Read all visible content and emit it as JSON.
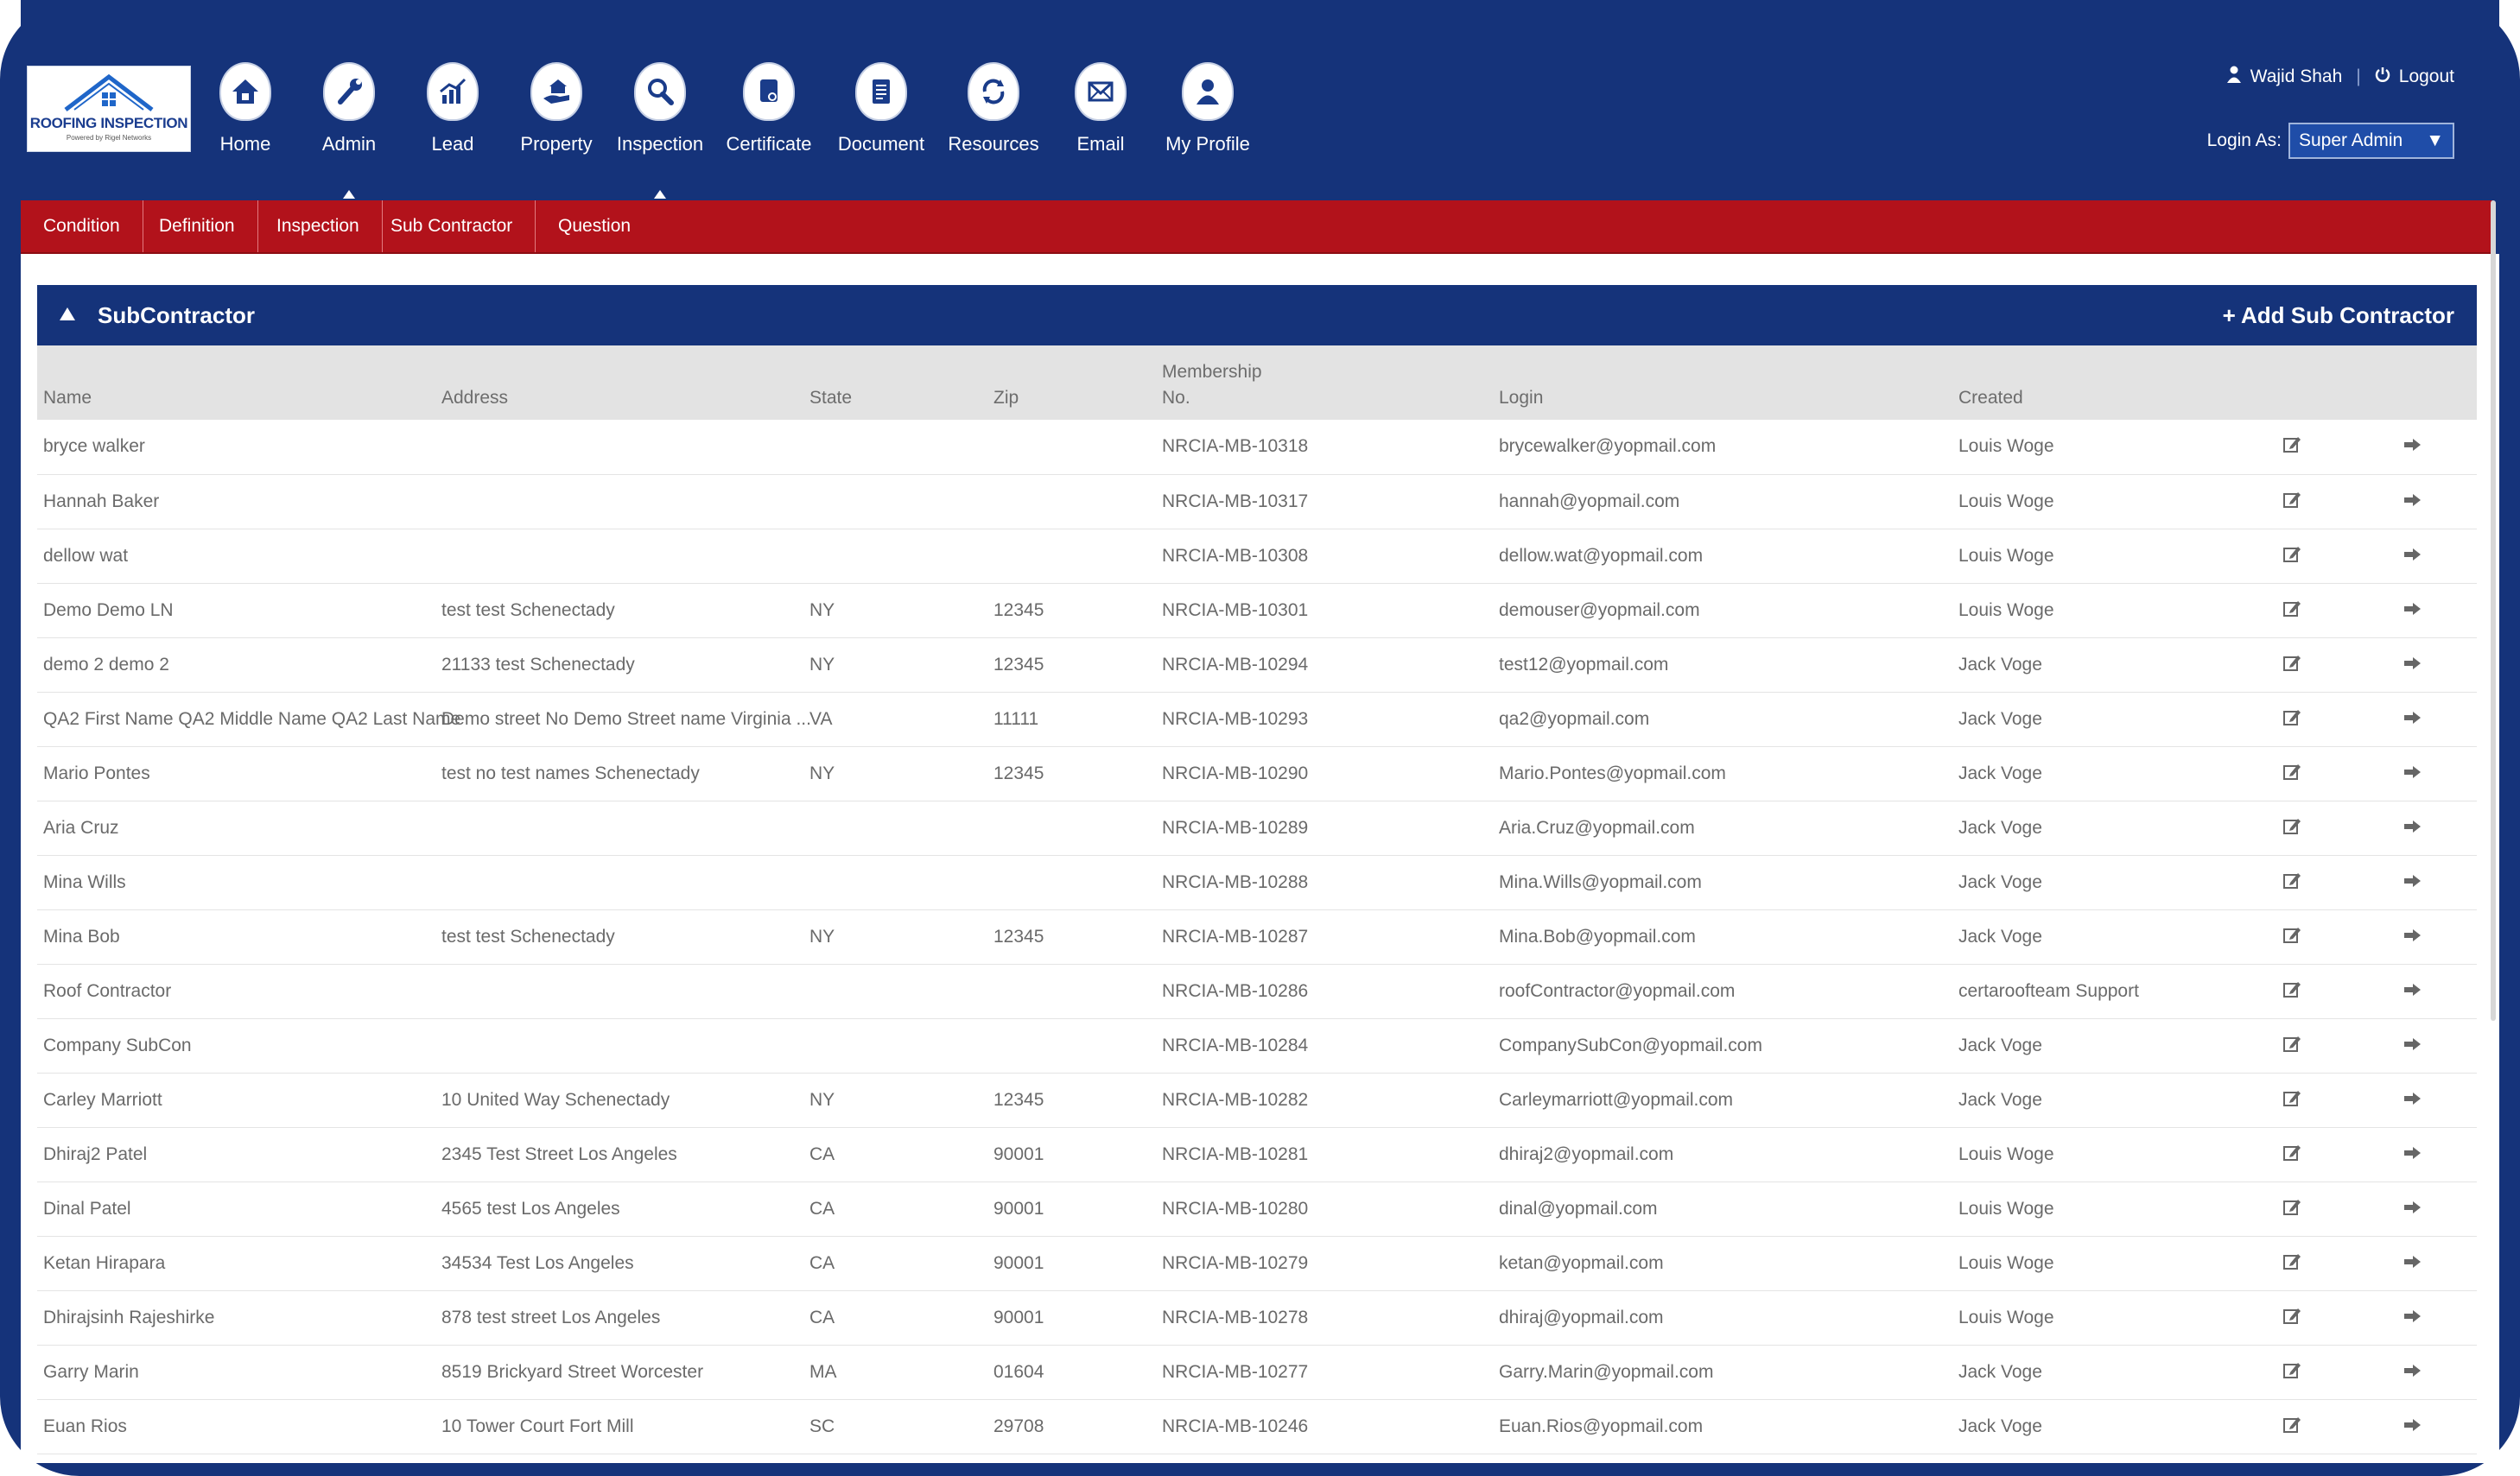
{
  "logo": {
    "brand": "ROOFING INSPECTION",
    "tagline": "Powered by Rigel Networks"
  },
  "nav": [
    {
      "label": "Home",
      "icon": "home-icon"
    },
    {
      "label": "Admin",
      "icon": "wrench-icon"
    },
    {
      "label": "Lead",
      "icon": "chart-icon"
    },
    {
      "label": "Property",
      "icon": "hand-house-icon"
    },
    {
      "label": "Inspection",
      "icon": "magnifier-icon"
    },
    {
      "label": "Certificate",
      "icon": "certificate-icon"
    },
    {
      "label": "Document",
      "icon": "document-icon"
    },
    {
      "label": "Resources",
      "icon": "refresh-icon"
    },
    {
      "label": "Email",
      "icon": "envelope-icon"
    },
    {
      "label": "My Profile",
      "icon": "person-icon"
    }
  ],
  "user": {
    "name": "Wajid Shah",
    "logout": "Logout",
    "login_as_label": "Login As:",
    "login_as_value": "Super Admin"
  },
  "subnav": [
    "Condition",
    "Definition",
    "Inspection",
    "Sub Contractor",
    "Question"
  ],
  "panel": {
    "title": "SubContractor",
    "add_label": "+ Add Sub Contractor"
  },
  "columns": {
    "name": "Name",
    "address": "Address",
    "state": "State",
    "zip": "Zip",
    "membership": "Membership No.",
    "login": "Login",
    "created": "Created"
  },
  "rows": [
    {
      "name": "bryce walker",
      "address": "",
      "state": "",
      "zip": "",
      "membership": "NRCIA-MB-10318",
      "login": "brycewalker@yopmail.com",
      "created": "Louis Woge"
    },
    {
      "name": "Hannah Baker",
      "address": "",
      "state": "",
      "zip": "",
      "membership": "NRCIA-MB-10317",
      "login": "hannah@yopmail.com",
      "created": "Louis Woge"
    },
    {
      "name": "dellow wat",
      "address": "",
      "state": "",
      "zip": "",
      "membership": "NRCIA-MB-10308",
      "login": "dellow.wat@yopmail.com",
      "created": "Louis Woge"
    },
    {
      "name": "Demo Demo LN",
      "address": "test test Schenectady",
      "state": "NY",
      "zip": "12345",
      "membership": "NRCIA-MB-10301",
      "login": "demouser@yopmail.com",
      "created": "Louis Woge"
    },
    {
      "name": "demo 2 demo 2",
      "address": "21133 test Schenectady",
      "state": "NY",
      "zip": "12345",
      "membership": "NRCIA-MB-10294",
      "login": "test12@yopmail.com",
      "created": "Jack Voge"
    },
    {
      "name": "QA2 First Name QA2 Middle Name QA2 Last Name",
      "address": "Demo street No Demo Street name Virginia ...",
      "state": "VA",
      "zip": "11111",
      "membership": "NRCIA-MB-10293",
      "login": "qa2@yopmail.com",
      "created": "Jack Voge"
    },
    {
      "name": "Mario Pontes",
      "address": "test no test names Schenectady",
      "state": "NY",
      "zip": "12345",
      "membership": "NRCIA-MB-10290",
      "login": "Mario.Pontes@yopmail.com",
      "created": "Jack Voge"
    },
    {
      "name": "Aria Cruz",
      "address": "",
      "state": "",
      "zip": "",
      "membership": "NRCIA-MB-10289",
      "login": "Aria.Cruz@yopmail.com",
      "created": "Jack Voge"
    },
    {
      "name": "Mina Wills",
      "address": "",
      "state": "",
      "zip": "",
      "membership": "NRCIA-MB-10288",
      "login": "Mina.Wills@yopmail.com",
      "created": "Jack Voge"
    },
    {
      "name": "Mina Bob",
      "address": "test test Schenectady",
      "state": "NY",
      "zip": "12345",
      "membership": "NRCIA-MB-10287",
      "login": "Mina.Bob@yopmail.com",
      "created": "Jack Voge"
    },
    {
      "name": "Roof Contractor",
      "address": "",
      "state": "",
      "zip": "",
      "membership": "NRCIA-MB-10286",
      "login": "roofContractor@yopmail.com",
      "created": "certaroofteam Support"
    },
    {
      "name": "Company SubCon",
      "address": "",
      "state": "",
      "zip": "",
      "membership": "NRCIA-MB-10284",
      "login": "CompanySubCon@yopmail.com",
      "created": "Jack Voge"
    },
    {
      "name": "Carley Marriott",
      "address": "10 United Way Schenectady",
      "state": "NY",
      "zip": "12345",
      "membership": "NRCIA-MB-10282",
      "login": "Carleymarriott@yopmail.com",
      "created": "Jack Voge"
    },
    {
      "name": "Dhiraj2 Patel",
      "address": "2345 Test Street Los Angeles",
      "state": "CA",
      "zip": "90001",
      "membership": "NRCIA-MB-10281",
      "login": "dhiraj2@yopmail.com",
      "created": "Louis Woge"
    },
    {
      "name": "Dinal Patel",
      "address": "4565 test Los Angeles",
      "state": "CA",
      "zip": "90001",
      "membership": "NRCIA-MB-10280",
      "login": "dinal@yopmail.com",
      "created": "Louis Woge"
    },
    {
      "name": "Ketan Hirapara",
      "address": "34534 Test Los Angeles",
      "state": "CA",
      "zip": "90001",
      "membership": "NRCIA-MB-10279",
      "login": "ketan@yopmail.com",
      "created": "Louis Woge"
    },
    {
      "name": "Dhirajsinh Rajeshirke",
      "address": "878 test street Los Angeles",
      "state": "CA",
      "zip": "90001",
      "membership": "NRCIA-MB-10278",
      "login": "dhiraj@yopmail.com",
      "created": "Louis Woge"
    },
    {
      "name": "Garry Marin",
      "address": "8519 Brickyard Street Worcester",
      "state": "MA",
      "zip": "01604",
      "membership": "NRCIA-MB-10277",
      "login": "Garry.Marin@yopmail.com",
      "created": "Jack Voge"
    },
    {
      "name": "Euan Rios",
      "address": "10 Tower Court Fort Mill",
      "state": "SC",
      "zip": "29708",
      "membership": "NRCIA-MB-10246",
      "login": "Euan.Rios@yopmail.com",
      "created": "Jack Voge"
    }
  ],
  "colors": {
    "navy": "#15337a",
    "red": "#b2121b",
    "header_gray": "#e3e3e3"
  }
}
